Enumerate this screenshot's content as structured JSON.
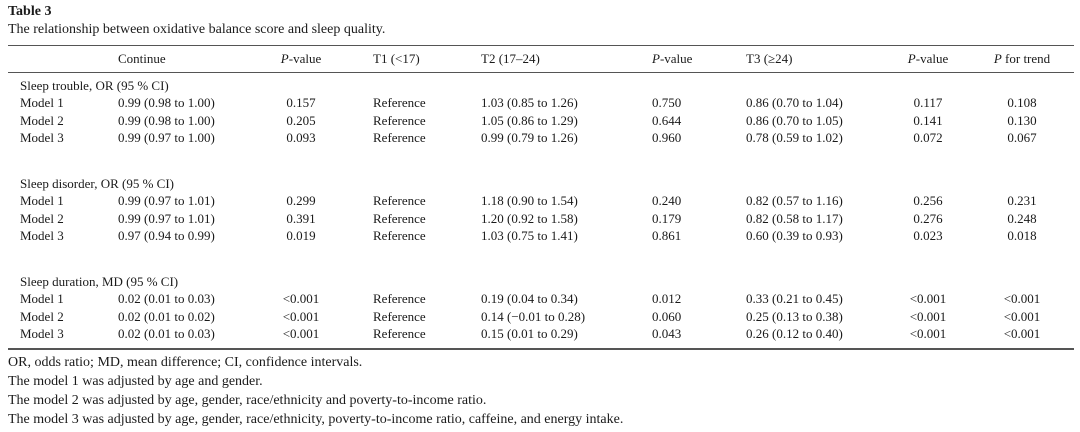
{
  "title": "Table 3",
  "subtitle": "The relationship between oxidative balance score and sleep quality.",
  "header": {
    "continue": "Continue",
    "p1_italic": "P",
    "p1_rest": "-value",
    "t1": "T1 (<17)",
    "t2": "T2 (17–24)",
    "p2_italic": "P",
    "p2_rest": "-value",
    "t3": "T3 (≥24)",
    "p3_italic": "P",
    "p3_rest": "-value",
    "trend_italic": "P",
    "trend_rest": " for trend"
  },
  "sections": [
    {
      "label": "Sleep trouble, OR (95 % CI)",
      "rows": [
        [
          "Model 1",
          "0.99 (0.98 to 1.00)",
          "0.157",
          "Reference",
          "1.03 (0.85 to 1.26)",
          "0.750",
          "0.86 (0.70 to 1.04)",
          "0.117",
          "0.108"
        ],
        [
          "Model 2",
          "0.99 (0.98 to 1.00)",
          "0.205",
          "Reference",
          "1.05 (0.86 to 1.29)",
          "0.644",
          "0.86 (0.70 to 1.05)",
          "0.141",
          "0.130"
        ],
        [
          "Model 3",
          "0.99 (0.97 to 1.00)",
          "0.093",
          "Reference",
          "0.99 (0.79 to 1.26)",
          "0.960",
          "0.78 (0.59 to 1.02)",
          "0.072",
          "0.067"
        ]
      ]
    },
    {
      "label": "Sleep disorder, OR (95 % CI)",
      "rows": [
        [
          "Model 1",
          "0.99 (0.97 to 1.01)",
          "0.299",
          "Reference",
          "1.18 (0.90 to 1.54)",
          "0.240",
          "0.82 (0.57 to 1.16)",
          "0.256",
          "0.231"
        ],
        [
          "Model 2",
          "0.99 (0.97 to 1.01)",
          "0.391",
          "Reference",
          "1.20 (0.92 to 1.58)",
          "0.179",
          "0.82 (0.58 to 1.17)",
          "0.276",
          "0.248"
        ],
        [
          "Model 3",
          "0.97 (0.94 to 0.99)",
          "0.019",
          "Reference",
          "1.03 (0.75 to 1.41)",
          "0.861",
          "0.60 (0.39 to 0.93)",
          "0.023",
          "0.018"
        ]
      ]
    },
    {
      "label": "Sleep duration, MD (95 % CI)",
      "rows": [
        [
          "Model 1",
          "0.02 (0.01 to 0.03)",
          "<0.001",
          "Reference",
          "0.19 (0.04 to 0.34)",
          "0.012",
          "0.33 (0.21 to 0.45)",
          "<0.001",
          "<0.001"
        ],
        [
          "Model 2",
          "0.02 (0.01 to 0.02)",
          "<0.001",
          "Reference",
          "0.14 (−0.01 to 0.28)",
          "0.060",
          "0.25 (0.13 to 0.38)",
          "<0.001",
          "<0.001"
        ],
        [
          "Model 3",
          "0.02 (0.01 to 0.03)",
          "<0.001",
          "Reference",
          "0.15 (0.01 to 0.29)",
          "0.043",
          "0.26 (0.12 to 0.40)",
          "<0.001",
          "<0.001"
        ]
      ]
    }
  ],
  "notes": [
    "OR, odds ratio; MD, mean difference; CI, confidence intervals.",
    "The model 1 was adjusted by age and gender.",
    "The model 2 was adjusted by age, gender, race/ethnicity and poverty-to-income ratio.",
    "The model 3 was adjusted by age, gender, race/ethnicity, poverty-to-income ratio, caffeine, and energy intake."
  ]
}
